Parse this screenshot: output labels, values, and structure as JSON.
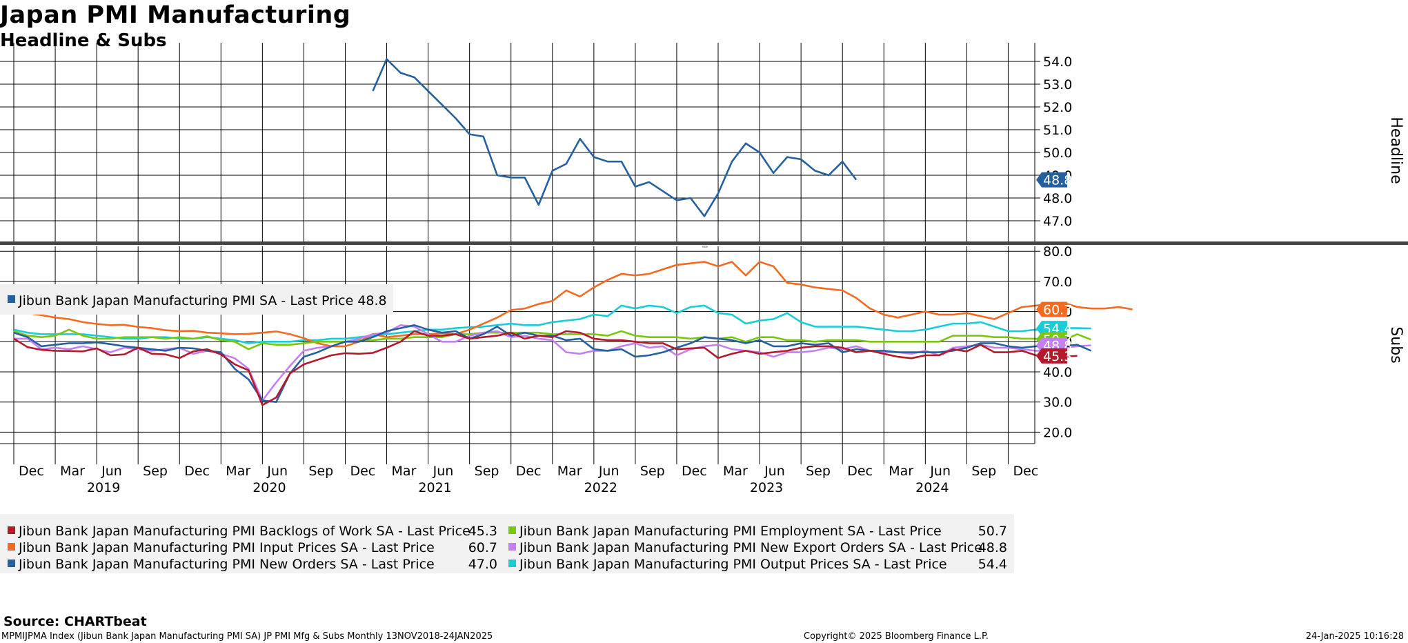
{
  "page": {
    "title": "Japan PMI Manufacturing",
    "subtitle": "Headline & Subs"
  },
  "footer": {
    "source": "Source: CHARTbeat",
    "info": "MPMIJPMA Index (Jibun Bank Japan Manufacturing PMI SA) JP PMI Mfg & Subs  Monthly 13NOV2018-24JAN2025",
    "copyright": "Copyright© 2025 Bloomberg Finance L.P.",
    "date": "24-Jan-2025 10:16:28"
  },
  "chart_data": [
    {
      "type": "line",
      "panel": "Headline",
      "ylabel": "Headline",
      "ylim": [
        46.5,
        54.8
      ],
      "yticks": [
        47,
        48,
        49,
        50,
        51,
        52,
        53,
        54
      ],
      "ytick_labels": [
        "47.0",
        "48.0",
        "49.0",
        "50.0",
        "51.0",
        "52.0",
        "53.0",
        "54.0"
      ],
      "grid": true,
      "series": [
        {
          "name": "Jibun Bank Japan Manufacturing PMI SA",
          "legend": "Jibun Bank Japan Manufacturing PMI SA - Last Price 48.8",
          "color": "#2460a0",
          "last_label": "48.8",
          "start_month_index": 26,
          "values": [
            52.7,
            54.1,
            53.5,
            53.3,
            52.7,
            52.1,
            51.5,
            50.8,
            50.7,
            49.0,
            48.9,
            48.9,
            47.7,
            49.2,
            49.5,
            50.6,
            49.8,
            49.6,
            49.6,
            48.5,
            48.7,
            48.3,
            47.9,
            48.0,
            47.2,
            48.2,
            49.6,
            50.4,
            50.0,
            49.1,
            49.8,
            49.7,
            49.2,
            49.0,
            49.6,
            48.8
          ]
        }
      ]
    },
    {
      "type": "line",
      "panel": "Subs",
      "ylabel": "Subs",
      "ylim": [
        16.0,
        82.0
      ],
      "yticks": [
        20,
        30,
        40,
        50,
        60,
        70,
        80
      ],
      "ytick_labels": [
        "20.0",
        "30.0",
        "40.0",
        "50.0",
        "60.0",
        "70.0",
        "80.0"
      ],
      "grid": true,
      "x": {
        "start": "Dec 2018",
        "tick_labels": [
          "Dec",
          "Mar",
          "Jun",
          "Sep",
          "Dec",
          "Mar",
          "Jun",
          "Sep",
          "Dec",
          "Mar",
          "Jun",
          "Sep",
          "Dec",
          "Mar",
          "Jun",
          "Sep",
          "Dec",
          "Mar",
          "Jun",
          "Sep",
          "Dec",
          "Mar",
          "Jun",
          "Sep",
          "Dec"
        ],
        "year_labels": [
          "2019",
          "2020",
          "2021",
          "2022",
          "2023",
          "2024"
        ]
      },
      "series": [
        {
          "name": "Jibun Bank Japan Manufacturing PMI Backlogs of Work SA",
          "legend_name": "Jibun Bank Japan Manufacturing PMI Backlogs of Work SA - Last Price",
          "last": "45.3",
          "color": "#b31b2c",
          "values": [
            51.0,
            48.2,
            47.3,
            47.0,
            46.9,
            46.8,
            47.8,
            45.5,
            45.8,
            48.0,
            46.0,
            45.8,
            44.6,
            46.8,
            47.5,
            45.8,
            42.5,
            40.5,
            29.0,
            31.5,
            39.5,
            42.5,
            44.0,
            45.5,
            46.2,
            46.0,
            46.3,
            48.0,
            50.0,
            53.5,
            52.0,
            52.0,
            52.5,
            51.0,
            51.5,
            52.0,
            53.0,
            51.0,
            52.0,
            51.5,
            53.5,
            53.0,
            51.0,
            50.5,
            50.5,
            50.0,
            49.5,
            49.5,
            47.5,
            47.8,
            48.0,
            44.6,
            46.0,
            47.0,
            46.0,
            46.5,
            47.0,
            48.0,
            48.5,
            48.5,
            48.0,
            46.5,
            47.0,
            46.0,
            45.0,
            44.5,
            45.5,
            45.5,
            47.5,
            46.8,
            49.0,
            46.5,
            46.5,
            47.0,
            45.5,
            45.5,
            45.0,
            45.3
          ]
        },
        {
          "name": "Jibun Bank Japan Manufacturing PMI Input Prices SA",
          "legend_name": "Jibun Bank Japan Manufacturing PMI Input Prices SA - Last Price",
          "last": "60.7",
          "color": "#f26b21",
          "values": [
            60.8,
            59.5,
            58.8,
            58.0,
            57.5,
            56.5,
            55.9,
            55.5,
            55.6,
            54.9,
            54.5,
            53.8,
            53.5,
            53.6,
            53.0,
            52.8,
            52.5,
            52.6,
            53.0,
            53.4,
            52.5,
            51.2,
            49.5,
            48.5,
            48.5,
            50.0,
            52.5,
            51.5,
            52.0,
            52.5,
            52.5,
            52.8,
            52.5,
            54.0,
            56.0,
            58.0,
            60.5,
            61.0,
            62.5,
            63.5,
            67.0,
            65.0,
            68.0,
            70.5,
            72.5,
            72.0,
            72.5,
            74.0,
            75.5,
            76.0,
            76.5,
            75.0,
            76.5,
            72.0,
            76.5,
            75.0,
            69.5,
            69.0,
            68.0,
            67.5,
            67.0,
            64.5,
            61.0,
            59.0,
            58.0,
            59.0,
            60.0,
            59.0,
            59.0,
            59.5,
            58.5,
            57.5,
            59.5,
            61.5,
            62.0,
            62.5,
            63.0,
            61.5,
            61.0,
            61.0,
            61.5,
            60.7
          ]
        },
        {
          "name": "Jibun Bank Japan Manufacturing PMI New Orders SA",
          "legend_name": "Jibun Bank Japan Manufacturing PMI New Orders SA - Last Price",
          "last": "47.0",
          "color": "#2460a0",
          "values": [
            53.0,
            51.5,
            48.5,
            49.0,
            49.5,
            49.5,
            49.8,
            49.2,
            48.5,
            48.0,
            47.5,
            47.0,
            48.0,
            47.8,
            47.0,
            46.5,
            41.0,
            37.5,
            30.5,
            30.0,
            39.5,
            45.0,
            46.5,
            48.5,
            50.0,
            50.0,
            51.5,
            53.5,
            54.5,
            55.5,
            54.0,
            53.0,
            53.5,
            51.0,
            52.5,
            55.0,
            52.0,
            53.0,
            52.0,
            52.0,
            50.5,
            51.0,
            47.5,
            47.0,
            47.5,
            45.0,
            45.5,
            46.5,
            48.0,
            49.5,
            51.5,
            51.0,
            50.5,
            49.5,
            50.5,
            48.5,
            48.5,
            49.5,
            49.0,
            49.5,
            46.5,
            47.5,
            47.0,
            47.0,
            46.5,
            46.5,
            46.5,
            46.5,
            47.0,
            48.0,
            49.5,
            49.5,
            48.5,
            48.0,
            48.5,
            48.5,
            48.5,
            49.0,
            47.0
          ]
        },
        {
          "name": "Jibun Bank Japan Manufacturing PMI Employment SA",
          "legend_name": "Jibun Bank Japan Manufacturing PMI Employment SA - Last Price",
          "last": "50.7",
          "color": "#7ac70c",
          "values": [
            53.5,
            52.0,
            51.5,
            52.0,
            54.0,
            52.0,
            51.0,
            51.0,
            51.5,
            51.5,
            51.5,
            51.0,
            51.5,
            51.0,
            51.8,
            50.5,
            50.0,
            47.5,
            49.5,
            49.0,
            49.0,
            49.5,
            50.0,
            50.0,
            50.0,
            50.5,
            50.5,
            51.0,
            51.0,
            51.5,
            51.5,
            51.5,
            52.5,
            52.5,
            53.0,
            53.0,
            53.0,
            53.0,
            53.0,
            52.5,
            52.5,
            52.5,
            52.5,
            52.0,
            53.5,
            52.0,
            51.5,
            51.5,
            51.5,
            51.0,
            51.5,
            51.0,
            51.5,
            50.0,
            51.5,
            51.5,
            50.5,
            50.5,
            50.0,
            50.5,
            50.5,
            50.5,
            50.0,
            50.0,
            50.0,
            50.0,
            50.0,
            50.0,
            52.0,
            52.0,
            52.0,
            51.5,
            51.5,
            51.0,
            51.0,
            50.5,
            50.5,
            52.5,
            50.7
          ]
        },
        {
          "name": "Jibun Bank Japan Manufacturing PMI New Export Orders SA",
          "legend_name": "Jibun Bank Japan Manufacturing PMI New Export Orders SA - Last Price",
          "last": "48.8",
          "color": "#c47ff0",
          "values": [
            51.0,
            51.0,
            47.5,
            48.0,
            47.5,
            48.5,
            47.5,
            46.5,
            48.0,
            47.5,
            47.0,
            47.5,
            48.0,
            46.0,
            47.0,
            46.0,
            44.5,
            41.0,
            30.5,
            36.5,
            42.0,
            47.0,
            48.0,
            48.5,
            50.0,
            51.0,
            52.5,
            53.0,
            55.5,
            55.0,
            52.5,
            50.0,
            50.0,
            52.0,
            53.0,
            53.5,
            51.5,
            52.0,
            51.0,
            50.5,
            46.5,
            46.0,
            47.0,
            47.0,
            48.5,
            49.5,
            48.0,
            48.5,
            45.5,
            47.5,
            48.5,
            49.0,
            47.5,
            47.0,
            46.5,
            45.0,
            46.5,
            46.5,
            47.0,
            48.0,
            47.5,
            48.5,
            47.0,
            46.5,
            46.5,
            46.0,
            47.0,
            45.5,
            48.0,
            48.5,
            49.0,
            48.0,
            48.0,
            47.5,
            47.0,
            47.0,
            48.0,
            48.5,
            48.8
          ]
        },
        {
          "name": "Jibun Bank Japan Manufacturing PMI Output Prices SA",
          "legend_name": "Jibun Bank Japan Manufacturing PMI Output Prices SA - Last Price",
          "last": "54.4",
          "color": "#19cdd6",
          "values": [
            54.0,
            53.0,
            52.5,
            52.5,
            52.5,
            52.5,
            52.0,
            51.5,
            51.0,
            51.0,
            51.5,
            51.5,
            51.0,
            51.0,
            51.5,
            51.0,
            50.5,
            49.5,
            50.0,
            50.0,
            50.0,
            50.5,
            50.5,
            51.0,
            51.0,
            51.5,
            52.0,
            52.5,
            53.0,
            53.5,
            54.0,
            54.0,
            54.5,
            54.8,
            55.0,
            55.5,
            56.0,
            55.5,
            55.5,
            56.5,
            57.0,
            57.5,
            59.0,
            58.5,
            62.0,
            61.0,
            62.0,
            61.5,
            59.5,
            61.5,
            62.0,
            59.5,
            59.0,
            56.0,
            57.0,
            57.5,
            59.5,
            56.5,
            55.0,
            55.0,
            55.0,
            55.0,
            54.5,
            54.0,
            53.5,
            53.5,
            54.0,
            55.0,
            56.0,
            56.0,
            56.5,
            55.0,
            53.5,
            53.5,
            54.0,
            54.0,
            54.5,
            54.5,
            54.4
          ]
        }
      ]
    }
  ]
}
